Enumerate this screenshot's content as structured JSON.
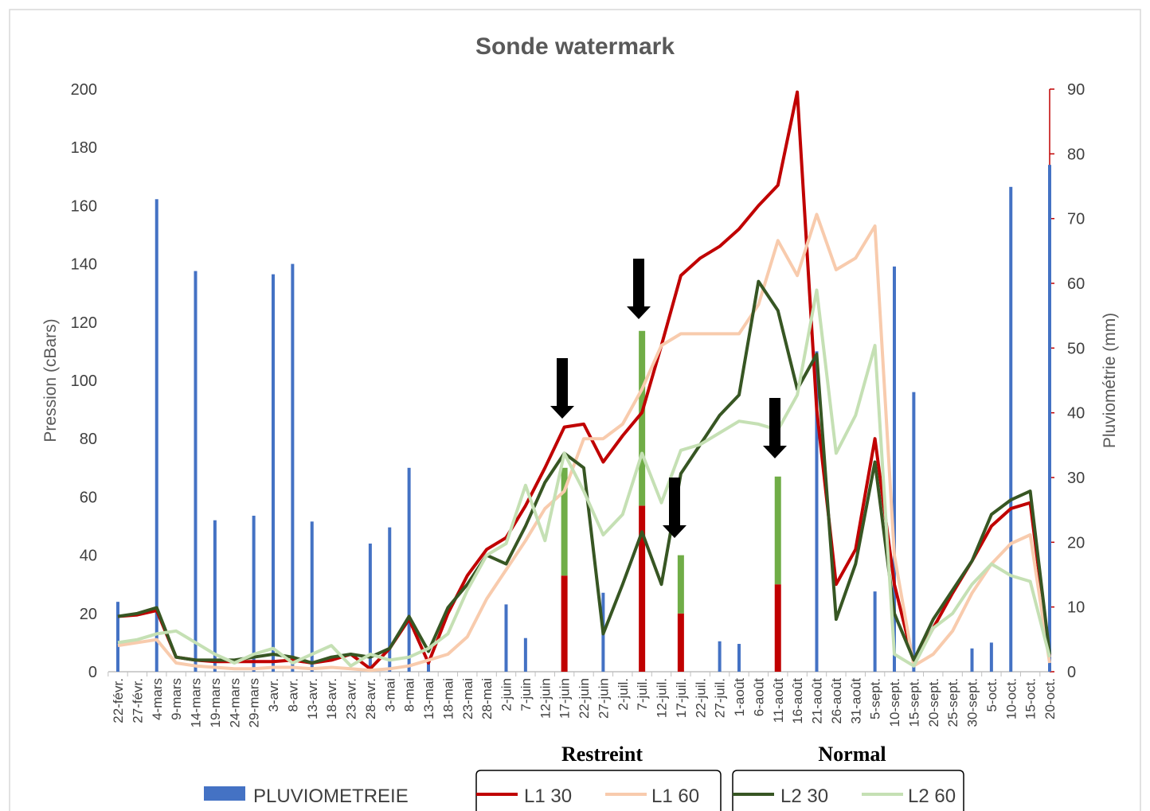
{
  "chart_data": {
    "type": "line",
    "title": "Sonde watermark",
    "y_label": "Pression (cBars)",
    "y2_label": "Pluviométrie (mm)",
    "categories": [
      "22-févr.",
      "27-févr.",
      "4-mars",
      "9-mars",
      "14-mars",
      "19-mars",
      "24-mars",
      "29-mars",
      "3-avr.",
      "8-avr.",
      "13-avr.",
      "18-avr.",
      "23-avr.",
      "28-avr.",
      "3-mai",
      "8-mai",
      "13-mai",
      "18-mai",
      "23-mai",
      "28-mai",
      "2-juin",
      "7-juin",
      "12-juin",
      "17-juin",
      "22-juin",
      "27-juin",
      "2-juil.",
      "7-juil.",
      "12-juil.",
      "17-juil.",
      "22-juil.",
      "27-juil.",
      "1-août",
      "6-août",
      "11-août",
      "16-août",
      "21-août",
      "26-août",
      "31-août",
      "5-sept.",
      "10-sept.",
      "15-sept.",
      "20-sept.",
      "25-sept.",
      "30-sept.",
      "5-oct.",
      "10-oct.",
      "15-oct.",
      "20-oct."
    ],
    "ylim": [
      0,
      200
    ],
    "yticks": [
      0,
      20,
      40,
      60,
      80,
      100,
      120,
      140,
      160,
      180,
      200
    ],
    "y2lim": [
      0,
      90
    ],
    "y2ticks": [
      0,
      10,
      20,
      30,
      40,
      50,
      60,
      70,
      80,
      90
    ],
    "legend": "bottom",
    "series": [
      {
        "name": "PLUVIOMETREIE",
        "type": "bar",
        "axis": "y2",
        "color": "#4472c4",
        "values": [
          10.8,
          null,
          73,
          null,
          61.9,
          23.4,
          null,
          24.1,
          61.4,
          63,
          23.2,
          null,
          null,
          19.8,
          22.3,
          31.5,
          1.5,
          null,
          null,
          null,
          10.4,
          5.2,
          null,
          null,
          null,
          12.2,
          null,
          4.5,
          null,
          5.2,
          null,
          4.7,
          4.3,
          null,
          null,
          null,
          49.5,
          null,
          null,
          12.4,
          62.6,
          43.2,
          null,
          null,
          3.6,
          4.5,
          74.9,
          null,
          78.3
        ]
      },
      {
        "type": "bar",
        "stack": true,
        "color": "#c00000",
        "values": [
          null,
          null,
          null,
          null,
          null,
          null,
          null,
          null,
          null,
          null,
          null,
          null,
          null,
          null,
          null,
          null,
          null,
          null,
          null,
          null,
          null,
          null,
          null,
          33,
          null,
          null,
          null,
          57,
          null,
          20,
          null,
          null,
          null,
          null,
          30,
          null,
          null,
          null,
          null,
          null,
          null,
          null,
          null,
          null,
          null,
          null,
          null,
          null,
          null
        ]
      },
      {
        "type": "bar",
        "stack": true,
        "color": "#70ad47",
        "values": [
          null,
          null,
          null,
          null,
          null,
          null,
          null,
          null,
          null,
          null,
          null,
          null,
          null,
          null,
          null,
          null,
          null,
          null,
          null,
          null,
          null,
          null,
          null,
          37,
          null,
          null,
          null,
          60,
          null,
          20,
          null,
          null,
          null,
          null,
          37,
          null,
          null,
          null,
          null,
          null,
          null,
          null,
          null,
          null,
          null,
          null,
          null,
          null,
          null
        ]
      },
      {
        "name": "L1 30",
        "color": "#c00000",
        "values": [
          19,
          19.5,
          21,
          5,
          4,
          3.5,
          3.5,
          3.5,
          3.5,
          4,
          3,
          4,
          6,
          1,
          8,
          18,
          3,
          20,
          33,
          42,
          46,
          57,
          70,
          84,
          85,
          72,
          81,
          89,
          112,
          136,
          142,
          146,
          152,
          160,
          167,
          199,
          90,
          30,
          42,
          80,
          30,
          3,
          15,
          27,
          38,
          50,
          56,
          58,
          5
        ]
      },
      {
        "name": "L1 60",
        "color": "#f8cbad",
        "values": [
          9,
          10,
          11,
          3,
          2,
          1.5,
          1,
          1,
          1.5,
          1.5,
          1,
          1.5,
          1,
          0.5,
          1,
          2,
          4,
          6,
          12,
          25,
          35,
          45,
          56,
          62,
          80,
          80,
          85,
          97,
          112,
          116,
          116,
          116,
          116,
          126,
          148,
          136,
          157,
          138,
          142,
          153,
          40,
          2,
          6,
          14,
          27,
          37,
          44,
          47,
          3
        ]
      },
      {
        "name": "L2 30",
        "color": "#375623",
        "values": [
          19,
          20,
          22,
          5,
          4,
          4,
          4,
          5,
          6,
          5,
          3,
          5,
          6,
          5,
          8,
          19,
          7,
          22,
          30,
          40,
          37,
          50,
          65,
          75,
          70,
          13,
          30,
          48,
          30,
          68,
          78,
          88,
          95,
          134,
          124,
          97,
          109,
          18,
          37,
          72,
          20,
          4,
          18,
          28,
          38,
          54,
          59,
          62,
          6
        ]
      },
      {
        "name": "L2 60",
        "color": "#c5e0b4",
        "values": [
          10,
          11,
          13,
          14,
          10,
          6,
          3,
          6,
          8,
          3,
          6,
          9,
          2,
          6,
          4,
          5,
          8,
          13,
          28,
          40,
          44,
          64,
          45,
          75,
          62,
          47,
          54,
          75,
          58,
          76,
          78,
          82,
          86,
          85,
          83,
          95,
          131,
          75,
          88,
          112,
          6,
          2,
          15,
          20,
          30,
          37,
          33,
          31,
          5
        ]
      }
    ],
    "annotations": [
      "Restreint",
      "Normal"
    ]
  }
}
